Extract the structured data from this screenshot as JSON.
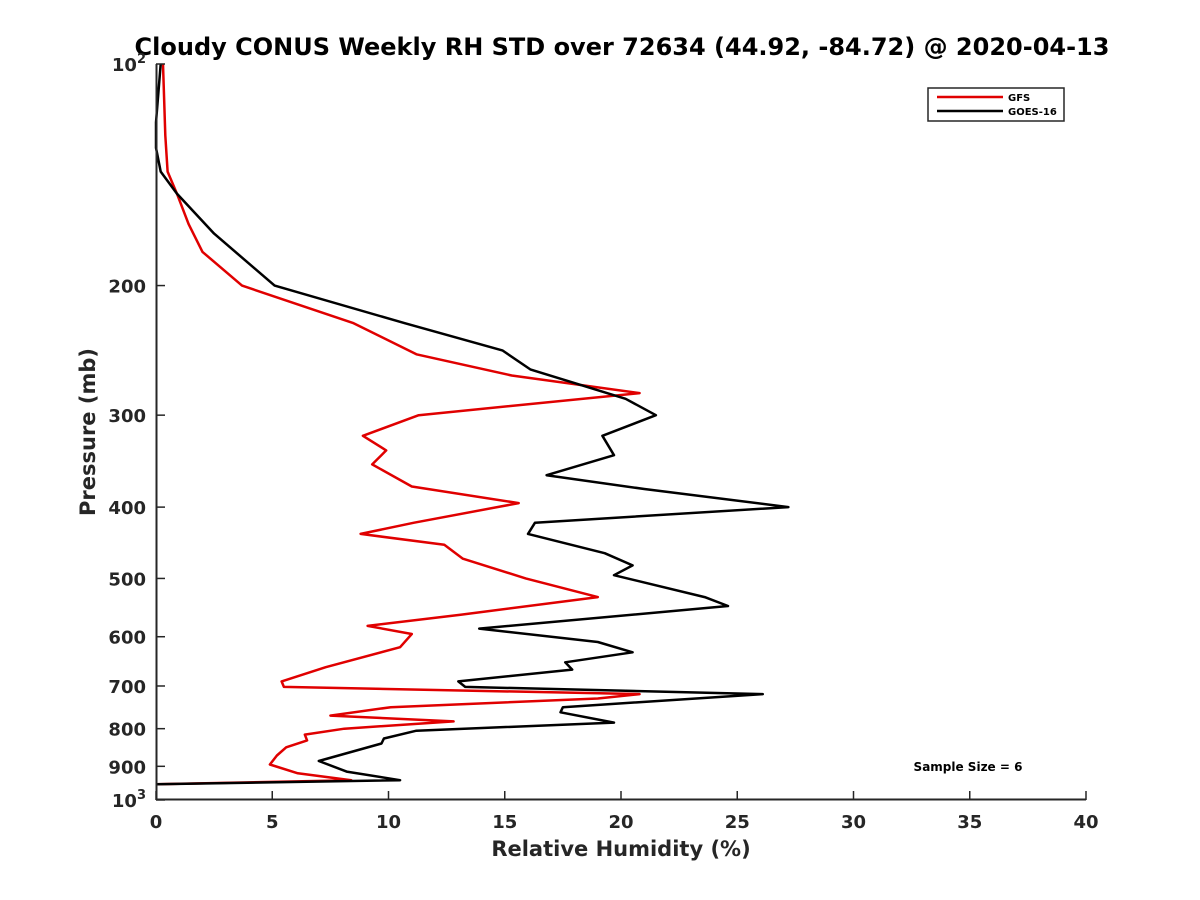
{
  "chart_data": {
    "type": "line",
    "title": "Cloudy CONUS Weekly RH STD over 72634 (44.92, -84.72) @ 2020-04-13",
    "xlabel": "Relative Humidity (%)",
    "ylabel": "Pressure (mb)",
    "xlim": [
      0,
      40
    ],
    "ylim": [
      100,
      1000
    ],
    "yscale": "log",
    "y_reversed": true,
    "grid": false,
    "legend_position": "top-right",
    "x_ticks": [
      "0",
      "5",
      "10",
      "15",
      "20",
      "25",
      "30",
      "35",
      "40"
    ],
    "y_ticks": [
      {
        "value": 100,
        "base": "10",
        "exp": "2"
      },
      {
        "value": 200,
        "label": "200"
      },
      {
        "value": 300,
        "label": "300"
      },
      {
        "value": 400,
        "label": "400"
      },
      {
        "value": 500,
        "label": "500"
      },
      {
        "value": 600,
        "label": "600"
      },
      {
        "value": 700,
        "label": "700"
      },
      {
        "value": 800,
        "label": "800"
      },
      {
        "value": 900,
        "label": "900"
      },
      {
        "value": 1000,
        "base": "10",
        "exp": "3"
      }
    ],
    "annotation": "Sample Size = 6",
    "series": [
      {
        "name": "GFS",
        "color": "#e00000",
        "points": [
          [
            0.3,
            100
          ],
          [
            0.4,
            125
          ],
          [
            0.5,
            140
          ],
          [
            0.9,
            150
          ],
          [
            1.4,
            165
          ],
          [
            2.0,
            180
          ],
          [
            3.7,
            200
          ],
          [
            8.5,
            225
          ],
          [
            11.2,
            248
          ],
          [
            15.3,
            265
          ],
          [
            20.8,
            280
          ],
          [
            11.3,
            300
          ],
          [
            8.9,
            320
          ],
          [
            9.9,
            335
          ],
          [
            9.3,
            350
          ],
          [
            11.0,
            375
          ],
          [
            15.6,
            395
          ],
          [
            11.1,
            420
          ],
          [
            8.8,
            435
          ],
          [
            12.4,
            450
          ],
          [
            13.2,
            470
          ],
          [
            15.9,
            500
          ],
          [
            19.0,
            530
          ],
          [
            13.1,
            560
          ],
          [
            9.1,
            580
          ],
          [
            11.0,
            595
          ],
          [
            10.5,
            620
          ],
          [
            7.3,
            660
          ],
          [
            5.4,
            690
          ],
          [
            5.5,
            702
          ],
          [
            20.8,
            718
          ],
          [
            19.0,
            728
          ],
          [
            10.1,
            748
          ],
          [
            7.5,
            768
          ],
          [
            12.8,
            782
          ],
          [
            8.1,
            800
          ],
          [
            6.4,
            815
          ],
          [
            6.5,
            830
          ],
          [
            5.6,
            848
          ],
          [
            5.2,
            870
          ],
          [
            4.9,
            895
          ],
          [
            6.1,
            920
          ],
          [
            8.4,
            940
          ],
          [
            0.0,
            952
          ]
        ]
      },
      {
        "name": "GOES-16",
        "color": "#000000",
        "points": [
          [
            0.2,
            100
          ],
          [
            0.0,
            120
          ],
          [
            0.0,
            130
          ],
          [
            0.2,
            140
          ],
          [
            0.9,
            150
          ],
          [
            2.5,
            170
          ],
          [
            5.1,
            200
          ],
          [
            10.7,
            225
          ],
          [
            14.9,
            245
          ],
          [
            16.1,
            260
          ],
          [
            20.2,
            285
          ],
          [
            21.5,
            300
          ],
          [
            19.2,
            320
          ],
          [
            19.7,
            340
          ],
          [
            16.8,
            362
          ],
          [
            21.0,
            378
          ],
          [
            27.2,
            400
          ],
          [
            16.3,
            420
          ],
          [
            16.0,
            435
          ],
          [
            19.3,
            462
          ],
          [
            20.5,
            480
          ],
          [
            19.7,
            495
          ],
          [
            23.6,
            530
          ],
          [
            24.6,
            545
          ],
          [
            13.9,
            585
          ],
          [
            19.0,
            610
          ],
          [
            20.5,
            630
          ],
          [
            17.6,
            650
          ],
          [
            17.9,
            665
          ],
          [
            13.0,
            690
          ],
          [
            13.3,
            702
          ],
          [
            26.1,
            718
          ],
          [
            17.5,
            748
          ],
          [
            17.4,
            760
          ],
          [
            19.7,
            785
          ],
          [
            11.2,
            805
          ],
          [
            9.8,
            825
          ],
          [
            9.7,
            838
          ],
          [
            7.0,
            885
          ],
          [
            8.2,
            915
          ],
          [
            10.5,
            940
          ],
          [
            0.0,
            952
          ]
        ]
      }
    ]
  }
}
